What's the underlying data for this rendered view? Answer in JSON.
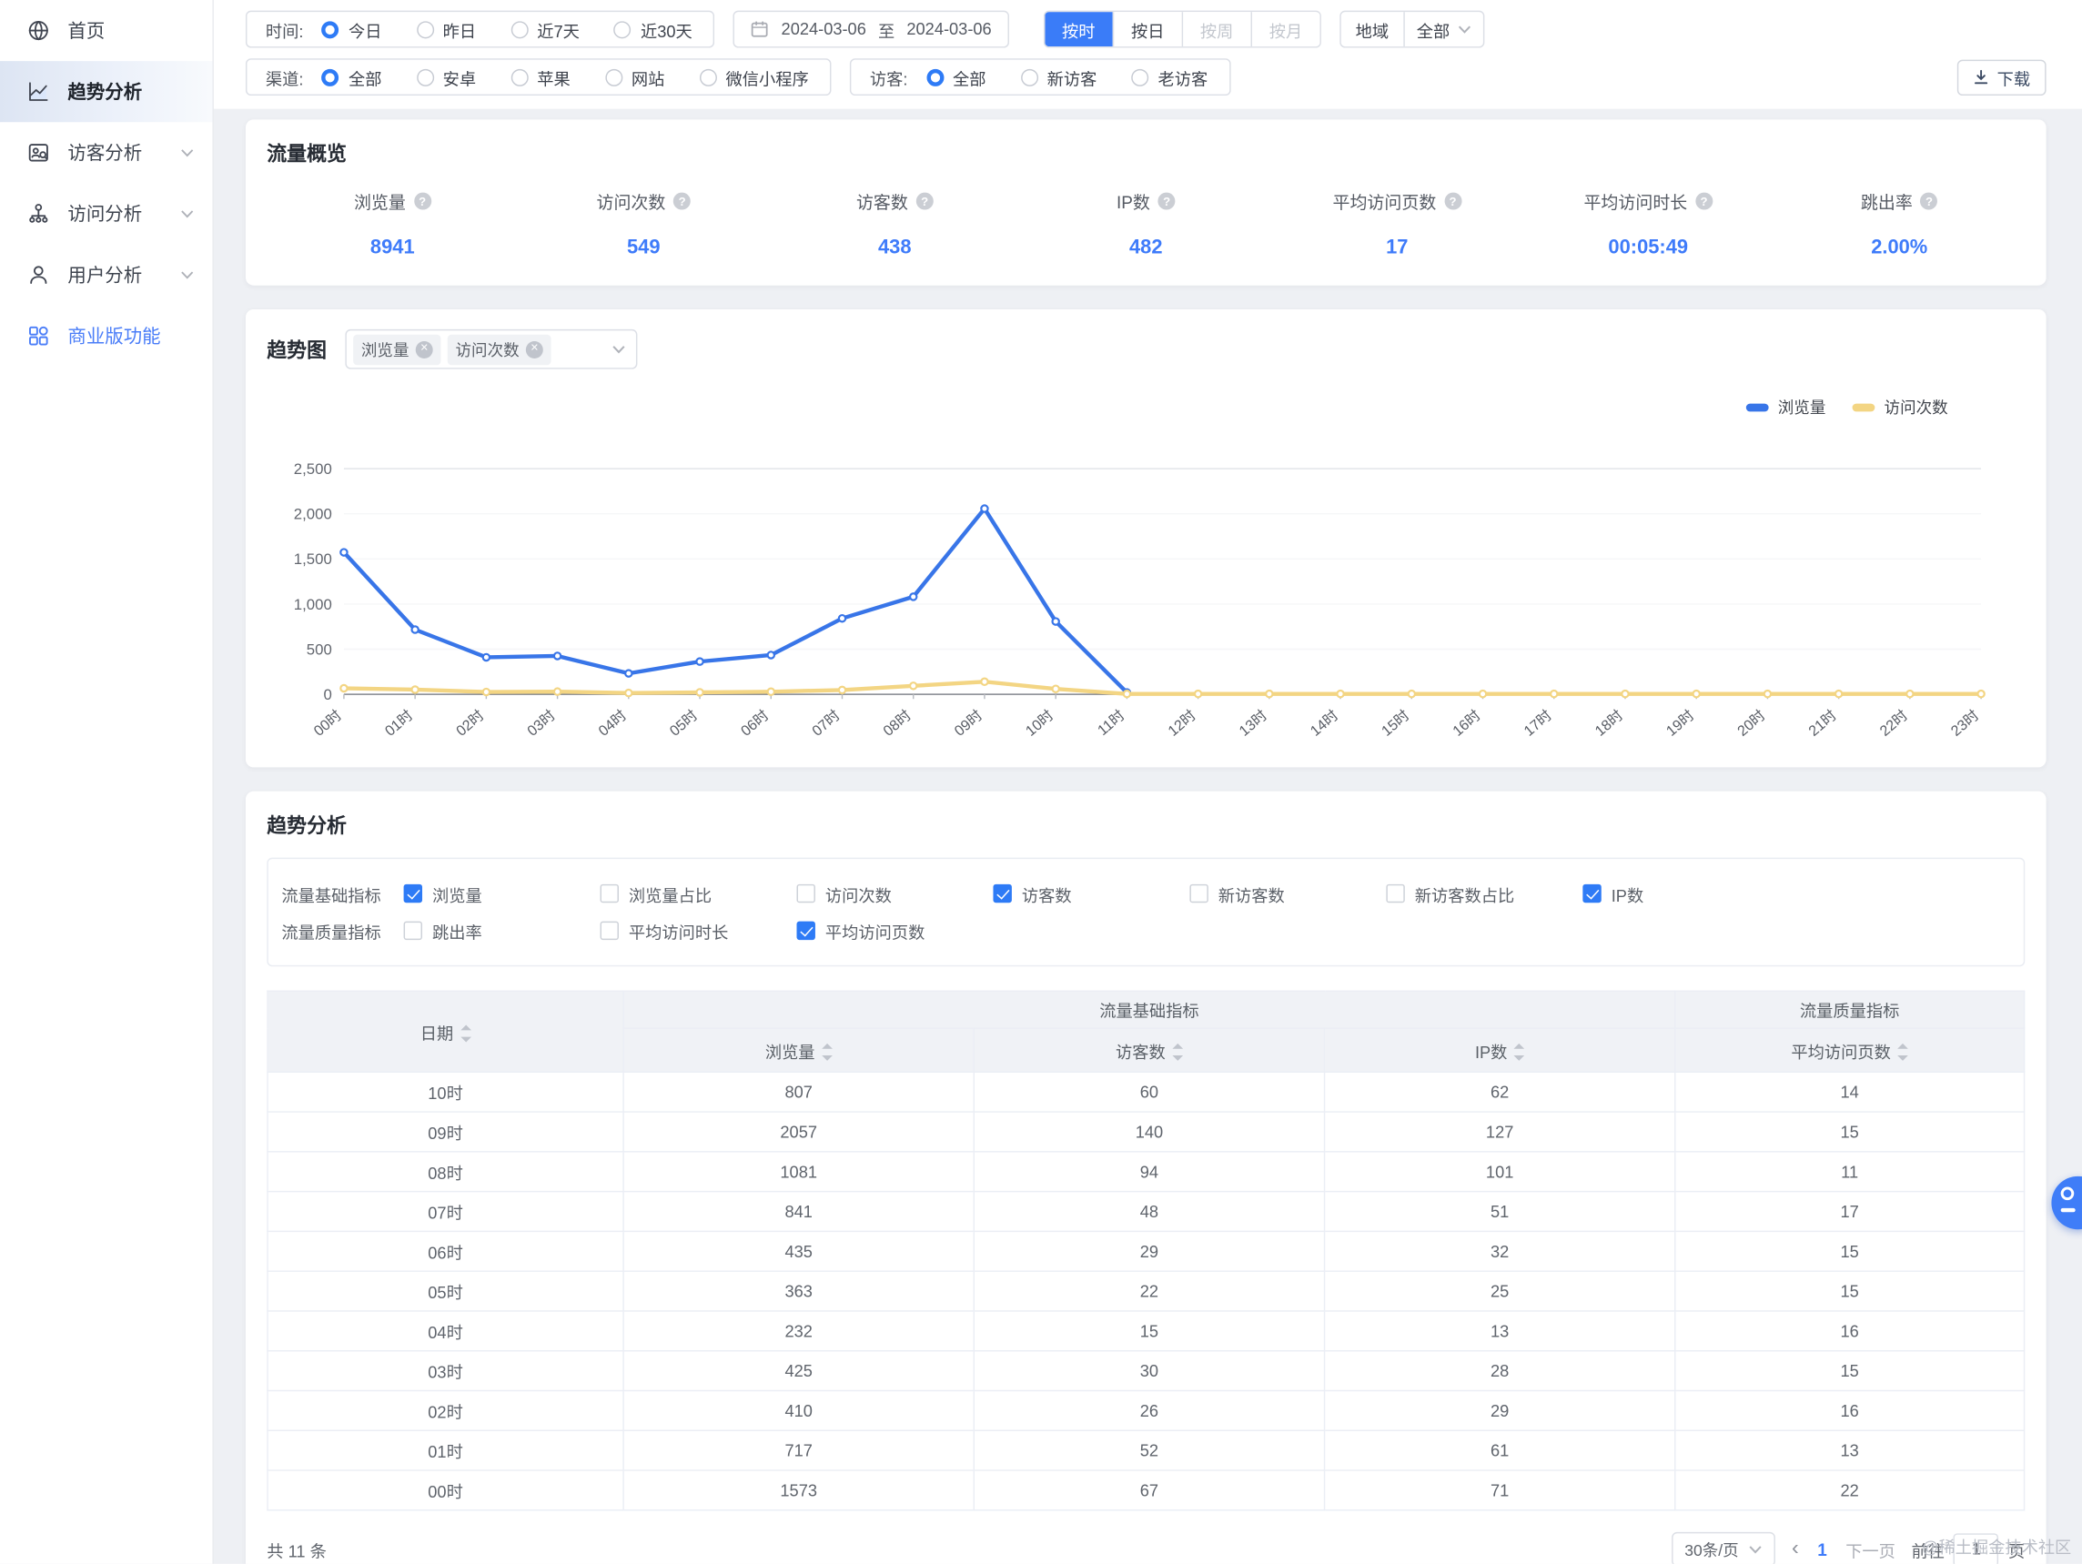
{
  "sidebar": {
    "items": [
      {
        "label": "首页",
        "icon": "home-icon",
        "active": false,
        "chevron": false,
        "accent": false
      },
      {
        "label": "趋势分析",
        "icon": "trend-icon",
        "active": true,
        "chevron": false,
        "accent": false
      },
      {
        "label": "访客分析",
        "icon": "visitor-icon",
        "active": false,
        "chevron": true,
        "accent": false
      },
      {
        "label": "访问分析",
        "icon": "visit-icon",
        "active": false,
        "chevron": true,
        "accent": false
      },
      {
        "label": "用户分析",
        "icon": "user-icon",
        "active": false,
        "chevron": true,
        "accent": false
      },
      {
        "label": "商业版功能",
        "icon": "business-icon",
        "active": false,
        "chevron": false,
        "accent": true
      }
    ]
  },
  "filters": {
    "time": {
      "label": "时间:",
      "options": [
        "今日",
        "昨日",
        "近7天",
        "近30天"
      ],
      "selected": "今日"
    },
    "date": {
      "start": "2024-03-06",
      "separator": "至",
      "end": "2024-03-06"
    },
    "granularity": {
      "options": [
        {
          "label": "按时",
          "state": "active"
        },
        {
          "label": "按日",
          "state": "normal"
        },
        {
          "label": "按周",
          "state": "disabled"
        },
        {
          "label": "按月",
          "state": "disabled"
        }
      ]
    },
    "region": {
      "label": "地域",
      "value": "全部"
    },
    "channel": {
      "label": "渠道:",
      "options": [
        "全部",
        "安卓",
        "苹果",
        "网站",
        "微信小程序"
      ],
      "selected": "全部"
    },
    "visitor": {
      "label": "访客:",
      "options": [
        "全部",
        "新访客",
        "老访客"
      ],
      "selected": "全部"
    },
    "download_label": "下载"
  },
  "overview": {
    "title": "流量概览",
    "metrics": [
      {
        "label": "浏览量",
        "value": "8941"
      },
      {
        "label": "访问次数",
        "value": "549"
      },
      {
        "label": "访客数",
        "value": "438"
      },
      {
        "label": "IP数",
        "value": "482"
      },
      {
        "label": "平均访问页数",
        "value": "17"
      },
      {
        "label": "平均访问时长",
        "value": "00:05:49"
      },
      {
        "label": "跳出率",
        "value": "2.00%"
      }
    ]
  },
  "trend_chart": {
    "title": "趋势图",
    "selected_tags": [
      "浏览量",
      "访问次数"
    ],
    "legend": [
      {
        "label": "浏览量",
        "color": "#3875e8"
      },
      {
        "label": "访问次数",
        "color": "#f3d583"
      }
    ]
  },
  "chart_data": {
    "type": "line",
    "x": [
      "00时",
      "01时",
      "02时",
      "03时",
      "04时",
      "05时",
      "06时",
      "07时",
      "08时",
      "09时",
      "10时",
      "11时",
      "12时",
      "13时",
      "14时",
      "15时",
      "16时",
      "17时",
      "18时",
      "19时",
      "20时",
      "21时",
      "22时",
      "23时"
    ],
    "series": [
      {
        "name": "浏览量",
        "color": "#3875e8",
        "values": [
          1573,
          717,
          410,
          425,
          232,
          363,
          435,
          841,
          1081,
          2057,
          807,
          20
        ]
      },
      {
        "name": "访问次数",
        "color": "#f3d583",
        "values": [
          67,
          52,
          26,
          30,
          15,
          22,
          29,
          48,
          94,
          140,
          60,
          5,
          5,
          5,
          5,
          5,
          5,
          5,
          5,
          5,
          5,
          5,
          5,
          5
        ]
      }
    ],
    "ylim": [
      0,
      2500
    ],
    "ytick_step": 500,
    "yticks": [
      "0",
      "500",
      "1,000",
      "1,500",
      "2,000",
      "2,500"
    ],
    "grid": "minimal",
    "legend_position": "top-right"
  },
  "analysis": {
    "title": "趋势分析",
    "metric_groups": [
      {
        "group": "流量基础指标",
        "options": [
          {
            "label": "浏览量",
            "checked": true
          },
          {
            "label": "浏览量占比",
            "checked": false
          },
          {
            "label": "访问次数",
            "checked": false
          },
          {
            "label": "访客数",
            "checked": true
          },
          {
            "label": "新访客数",
            "checked": false
          },
          {
            "label": "新访客数占比",
            "checked": false
          },
          {
            "label": "IP数",
            "checked": true
          }
        ]
      },
      {
        "group": "流量质量指标",
        "options": [
          {
            "label": "跳出率",
            "checked": false
          },
          {
            "label": "平均访问时长",
            "checked": false
          },
          {
            "label": "平均访问页数",
            "checked": true
          }
        ]
      }
    ]
  },
  "table": {
    "date_col": "日期",
    "groups": [
      {
        "label": "流量基础指标",
        "span": 3
      },
      {
        "label": "流量质量指标",
        "span": 1
      }
    ],
    "sub_columns": [
      "浏览量",
      "访客数",
      "IP数",
      "平均访问页数"
    ],
    "rows": [
      [
        "10时",
        "807",
        "60",
        "62",
        "14"
      ],
      [
        "09时",
        "2057",
        "140",
        "127",
        "15"
      ],
      [
        "08时",
        "1081",
        "94",
        "101",
        "11"
      ],
      [
        "07时",
        "841",
        "48",
        "51",
        "17"
      ],
      [
        "06时",
        "435",
        "29",
        "32",
        "15"
      ],
      [
        "05时",
        "363",
        "22",
        "25",
        "15"
      ],
      [
        "04时",
        "232",
        "15",
        "13",
        "16"
      ],
      [
        "03时",
        "425",
        "30",
        "28",
        "15"
      ],
      [
        "02时",
        "410",
        "26",
        "29",
        "16"
      ],
      [
        "01时",
        "717",
        "52",
        "61",
        "13"
      ],
      [
        "00时",
        "1573",
        "67",
        "71",
        "22"
      ]
    ]
  },
  "pagination": {
    "total": "共 11 条",
    "page_size": "30条/页",
    "prev": "‹",
    "current": "1",
    "next": "下一页",
    "goto": "前往",
    "goto_value": "1",
    "unit": "页"
  },
  "watermark": "@稀土掘金技术社区"
}
